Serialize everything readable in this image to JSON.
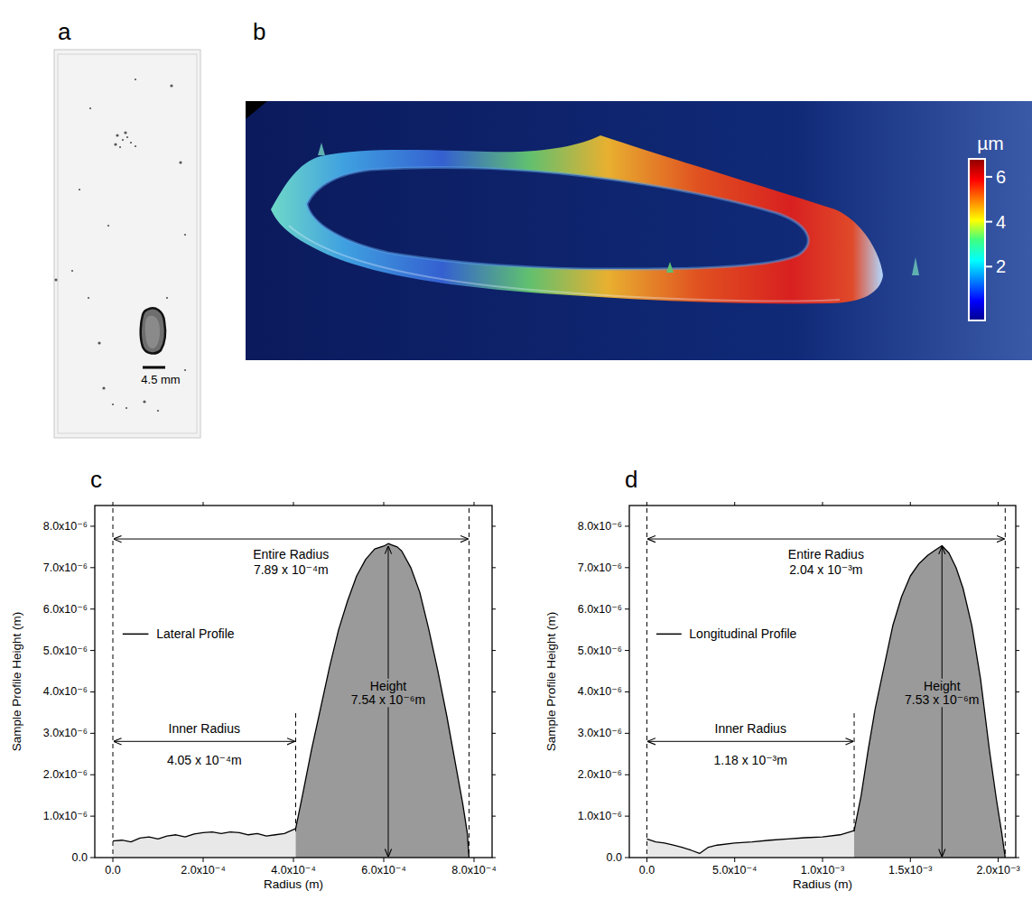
{
  "panels": [
    {
      "panel_label": "a",
      "scale_bar": "4.5 mm"
    },
    {
      "panel_label": "b",
      "colorbar": {
        "label": "µm",
        "range": [
          -0.4,
          6.8
        ],
        "ticks": [
          2,
          4,
          6
        ]
      }
    }
  ],
  "chart_data": [
    {
      "type": "area",
      "panel_label": "c",
      "x_label": "Radius (m)",
      "y_label": "Sample Profile Height (m)",
      "xlim": [
        -4e-05,
        0.00084
      ],
      "xticks": [
        {
          "value": 0,
          "label": "0.0"
        },
        {
          "value": 0.0002,
          "label": "2.0x10⁻⁴"
        },
        {
          "value": 0.0004,
          "label": "4.0x10⁻⁴"
        },
        {
          "value": 0.0006,
          "label": "6.0x10⁻⁴"
        },
        {
          "value": 0.0008,
          "label": "8.0x10⁻⁴"
        }
      ],
      "ylim": [
        0,
        8.5e-06
      ],
      "yticks": [
        {
          "value": 0,
          "label": "0.0"
        },
        {
          "value": 1e-06,
          "label": "1.0x10⁻⁶"
        },
        {
          "value": 2e-06,
          "label": "2.0x10⁻⁶"
        },
        {
          "value": 3e-06,
          "label": "3.0x10⁻⁶"
        },
        {
          "value": 4e-06,
          "label": "4.0x10⁻⁶"
        },
        {
          "value": 5e-06,
          "label": "5.0x10⁻⁶"
        },
        {
          "value": 6e-06,
          "label": "6.0x10⁻⁶"
        },
        {
          "value": 7e-06,
          "label": "7.0x10⁻⁶"
        },
        {
          "value": 8e-06,
          "label": "8.0x10⁻⁶"
        }
      ],
      "grid": false,
      "legend": "center left",
      "x": [
        0,
        2e-05,
        4e-05,
        6e-05,
        8e-05,
        0.0001,
        0.00012,
        0.00014,
        0.00016,
        0.00018,
        0.0002,
        0.00022,
        0.00024,
        0.00026,
        0.00028,
        0.0003,
        0.00032,
        0.00034,
        0.00036,
        0.00038,
        0.000405,
        0.00042,
        0.00044,
        0.00046,
        0.00048,
        0.0005,
        0.00052,
        0.00054,
        0.00056,
        0.00058,
        0.0006,
        0.00061,
        0.00062,
        0.00063,
        0.00064,
        0.00066,
        0.00068,
        0.0007,
        0.00072,
        0.00074,
        0.00076,
        0.000775,
        0.000785,
        0.000789
      ],
      "series": [
        {
          "name": "Lateral Profile",
          "color": "#000000",
          "values": [
            4e-07,
            4.2e-07,
            3.8e-07,
            4.7e-07,
            5e-07,
            4.5e-07,
            5.2e-07,
            5.5e-07,
            5e-07,
            5.7e-07,
            6e-07,
            6.2e-07,
            5.8e-07,
            6.2e-07,
            6e-07,
            5.5e-07,
            5.8e-07,
            5.2e-07,
            5.5e-07,
            5.8e-07,
            7e-07,
            1.5e-06,
            2.6e-06,
            3.6e-06,
            4.6e-06,
            5.5e-06,
            6.2e-06,
            6.8e-06,
            7.2e-06,
            7.45e-06,
            7.52e-06,
            7.58e-06,
            7.54e-06,
            7.5e-06,
            7.4e-06,
            7e-06,
            6.4e-06,
            5.5e-06,
            4.5e-06,
            3.4e-06,
            2.2e-06,
            1.3e-06,
            6e-07,
            0.0
          ]
        }
      ],
      "annotations": [
        {
          "text": "Entire Radius",
          "label": "7.89 x 10⁻⁴m",
          "value": 0.000789
        },
        {
          "text": "Inner Radius",
          "label": "4.05 x 10⁻⁴m",
          "value": 0.000405
        },
        {
          "text": "Height",
          "label": "7.54 x 10⁻⁶m",
          "value": 7.54e-06
        }
      ]
    },
    {
      "type": "area",
      "panel_label": "d",
      "x_label": "Radius (m)",
      "y_label": "Sample Profile Height (m)",
      "xlim": [
        -0.0001,
        0.0021
      ],
      "xticks": [
        {
          "value": 0,
          "label": "0.0"
        },
        {
          "value": 0.0005,
          "label": "5.0x10⁻⁴"
        },
        {
          "value": 0.001,
          "label": "1.0x10⁻³"
        },
        {
          "value": 0.0015,
          "label": "1.5x10⁻³"
        },
        {
          "value": 0.002,
          "label": "2.0x10⁻³"
        }
      ],
      "ylim": [
        0,
        8.5e-06
      ],
      "yticks": [
        {
          "value": 0,
          "label": "0.0"
        },
        {
          "value": 1e-06,
          "label": "1.0x10⁻⁶"
        },
        {
          "value": 2e-06,
          "label": "2.0x10⁻⁶"
        },
        {
          "value": 3e-06,
          "label": "3.0x10⁻⁶"
        },
        {
          "value": 4e-06,
          "label": "4.0x10⁻⁶"
        },
        {
          "value": 5e-06,
          "label": "5.0x10⁻⁶"
        },
        {
          "value": 6e-06,
          "label": "6.0x10⁻⁶"
        },
        {
          "value": 7e-06,
          "label": "7.0x10⁻⁶"
        },
        {
          "value": 8e-06,
          "label": "8.0x10⁻⁶"
        }
      ],
      "grid": false,
      "legend": "center left",
      "x": [
        0,
        5e-05,
        0.0001,
        0.00015,
        0.0002,
        0.00025,
        0.0003,
        0.00035,
        0.0004,
        0.0005,
        0.0006,
        0.0007,
        0.0008,
        0.0009,
        0.001,
        0.0011,
        0.00118,
        0.00122,
        0.00126,
        0.0013,
        0.00135,
        0.0014,
        0.00145,
        0.0015,
        0.00155,
        0.0016,
        0.00165,
        0.00168,
        0.00172,
        0.00176,
        0.0018,
        0.00185,
        0.0019,
        0.00195,
        0.00199,
        0.00202,
        0.00204
      ],
      "series": [
        {
          "name": "Longitudinal Profile",
          "color": "#000000",
          "values": [
            4.5e-07,
            3.8e-07,
            3.5e-07,
            3e-07,
            2.5e-07,
            1.8e-07,
            1e-07,
            2.5e-07,
            3e-07,
            3.5e-07,
            3.8e-07,
            4.2e-07,
            4.5e-07,
            4.8e-07,
            5e-07,
            5.5e-07,
            6.5e-07,
            1.5e-06,
            2.6e-06,
            3.6e-06,
            4.6e-06,
            5.6e-06,
            6.3e-06,
            6.8e-06,
            7.1e-06,
            7.3e-06,
            7.45e-06,
            7.53e-06,
            7.35e-06,
            7e-06,
            6.5e-06,
            5.6e-06,
            4.3e-06,
            2.6e-06,
            1.4e-06,
            6e-07,
            0.0
          ]
        }
      ],
      "annotations": [
        {
          "text": "Entire Radius",
          "label": "2.04 x 10⁻³m",
          "value": 0.00204
        },
        {
          "text": "Inner Radius",
          "label": "1.18 x 10⁻³m",
          "value": 0.00118
        },
        {
          "text": "Height",
          "label": "7.53 x 10⁻⁶m",
          "value": 7.53e-06
        }
      ]
    }
  ]
}
